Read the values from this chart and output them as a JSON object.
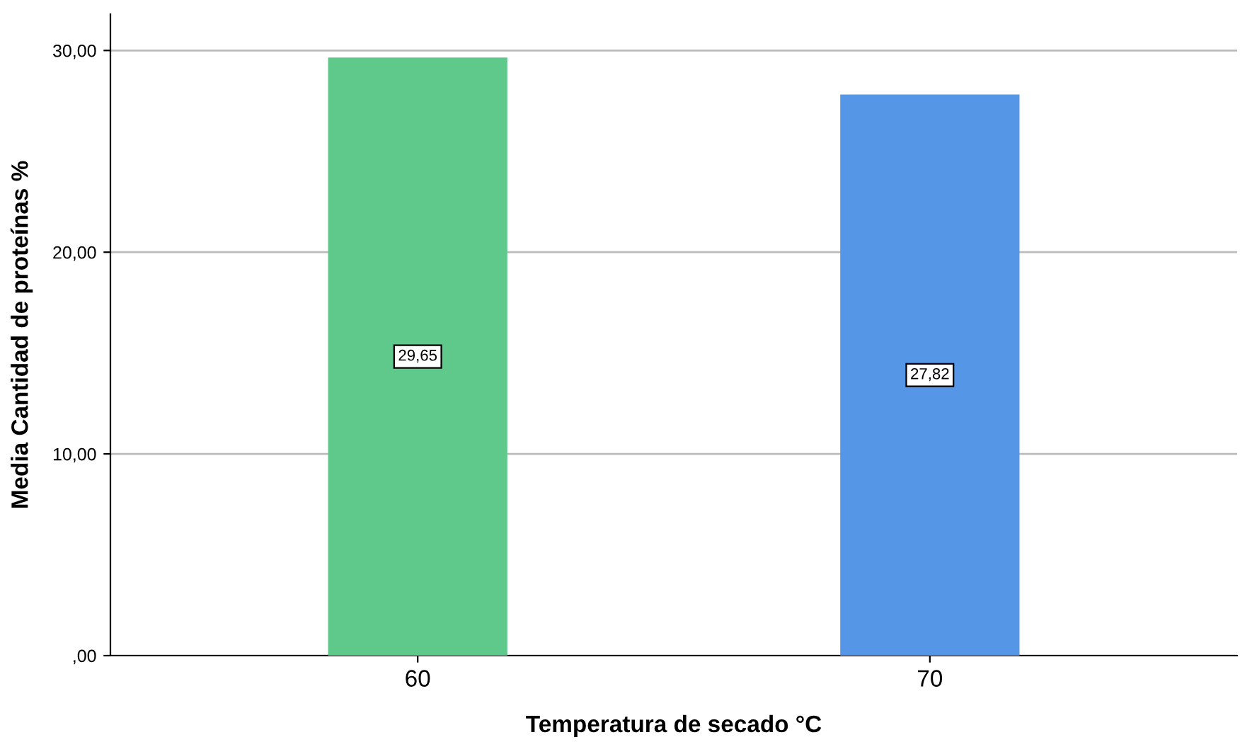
{
  "chart_data": {
    "type": "bar",
    "xlabel": "Temperatura de secado °C",
    "ylabel": "Media Cantidad de proteínas %",
    "categories": [
      "60",
      "70"
    ],
    "values": [
      29.65,
      27.82
    ],
    "colors": [
      "#5ec98b",
      "#5596e6"
    ],
    "value_labels": [
      "29,65",
      "27,82"
    ],
    "ylim": [
      0,
      31.8
    ],
    "yticks": [
      {
        "value": 0,
        "label": ",00"
      },
      {
        "value": 10,
        "label": "10,00"
      },
      {
        "value": 20,
        "label": "20,00"
      },
      {
        "value": 30,
        "label": "30,00"
      }
    ],
    "grid": "y",
    "legend": false
  }
}
